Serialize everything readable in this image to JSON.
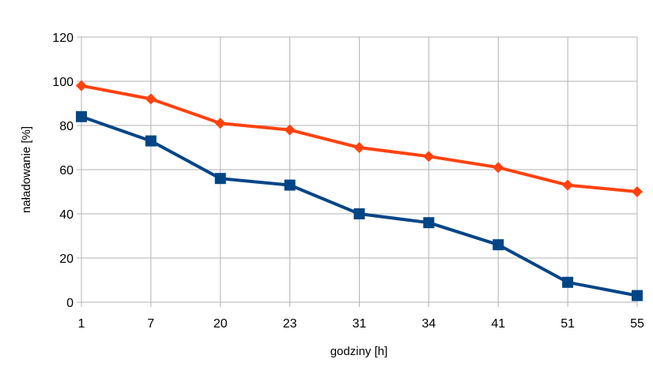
{
  "chart_data": {
    "type": "line",
    "title": "",
    "xlabel": "godziny [h]",
    "ylabel": "naładowanie [%]",
    "ylim": [
      0,
      120
    ],
    "yticks": [
      "0",
      "20",
      "40",
      "60",
      "80",
      "100",
      "120"
    ],
    "categories": [
      "1",
      "7",
      "20",
      "23",
      "31",
      "34",
      "41",
      "51",
      "55"
    ],
    "grid": true,
    "legend": "none",
    "series": [
      {
        "values": [
          98,
          92,
          81,
          78,
          70,
          66,
          61,
          53,
          50
        ],
        "color": "#ff420e",
        "marker": "diamond"
      },
      {
        "values": [
          84,
          73,
          56,
          53,
          40,
          36,
          26,
          9,
          3
        ],
        "color": "#004586",
        "marker": "square"
      }
    ]
  }
}
